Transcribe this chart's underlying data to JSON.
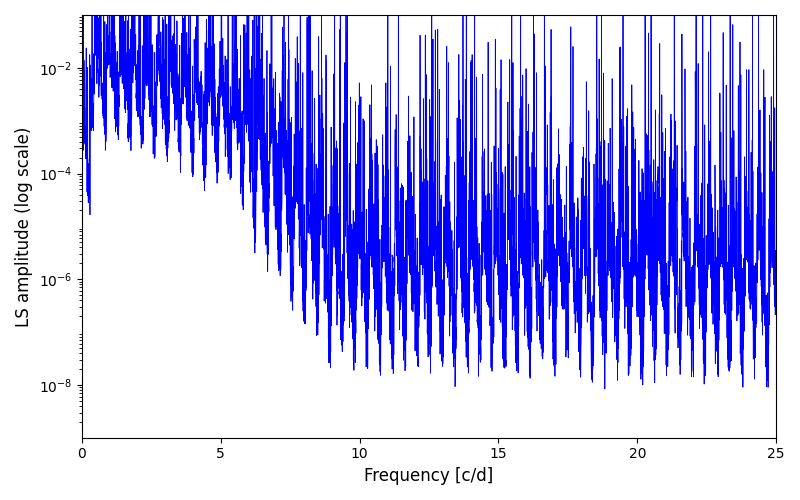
{
  "title": "",
  "xlabel": "Frequency [c/d]",
  "ylabel": "LS amplitude (log scale)",
  "xlim": [
    0,
    25
  ],
  "ylim_log": [
    1e-09,
    0.1
  ],
  "yticks": [
    1e-08,
    1e-06,
    0.0001,
    0.01
  ],
  "line_color": "#0000ff",
  "line_width": 0.6,
  "bg_color": "#ffffff",
  "figsize": [
    8.0,
    5.0
  ],
  "dpi": 100,
  "seed": 12345,
  "n_points": 5000,
  "freq_max": 25.0
}
